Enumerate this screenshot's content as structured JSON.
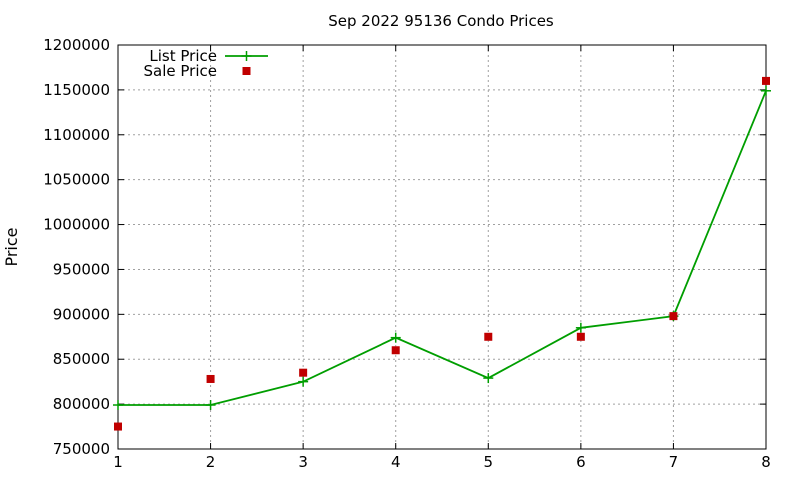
{
  "chart_data": {
    "type": "line",
    "title": "Sep 2022 95136 Condo Prices",
    "xlabel": "",
    "ylabel": "Price",
    "x": [
      1,
      2,
      3,
      4,
      5,
      6,
      7,
      8
    ],
    "xlim": [
      1,
      8
    ],
    "ylim": [
      750000,
      1200000
    ],
    "yticks": [
      750000,
      800000,
      850000,
      900000,
      950000,
      1000000,
      1050000,
      1100000,
      1150000,
      1200000
    ],
    "grid": true,
    "legend_position": "top-left",
    "series": [
      {
        "name": "List Price",
        "style": "line-with-plus-markers",
        "color": "#009e00",
        "values": [
          799000,
          799000,
          825000,
          874000,
          829000,
          885000,
          898000,
          1149000
        ]
      },
      {
        "name": "Sale Price",
        "style": "square-markers",
        "color": "#c00000",
        "values": [
          775000,
          828000,
          835000,
          860000,
          875000,
          875000,
          898000,
          1160000
        ]
      }
    ]
  }
}
